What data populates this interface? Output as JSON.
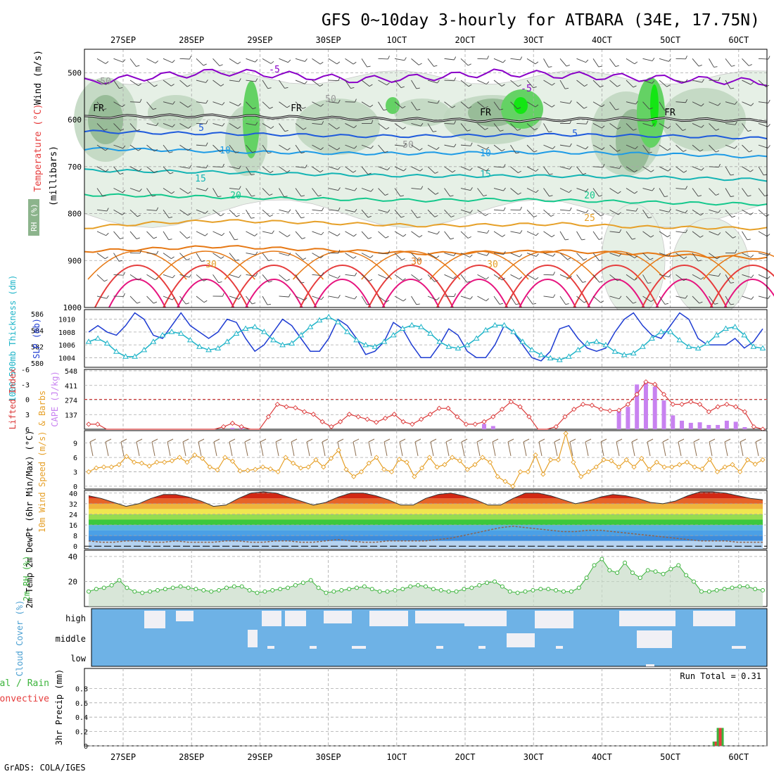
{
  "header": {
    "title": "GFS 0~10day 3-hourly for ATBARA (34E, 17.75N)",
    "credit": "GrADS: COLA/IGES"
  },
  "colors": {
    "bg": "#ffffff",
    "grid": "#a8a8a8",
    "axis": "#000000",
    "purple": "#8a00c8",
    "freeze": "#000000",
    "blue_dark": "#1e5adc",
    "blue_mid": "#1e9be6",
    "teal": "#14b4b4",
    "green_t": "#14c88c",
    "orange": "#e6a028",
    "orange_dark": "#e67814",
    "red": "#e63c3c",
    "magenta": "#e6147f",
    "rh_light": "#e6f0e6",
    "rh_mid": "#bed6be",
    "rh_dark": "#8cb48c",
    "rh_green": "#64d264",
    "rh_bright": "#14e614",
    "slp": "#1e3cd2",
    "thick": "#1eb4c8",
    "li": "#dc3c3c",
    "cape": "#c882f0",
    "wind10": "#e6a028",
    "barb10": "#8c6e50",
    "rh2m": "#3cb43c",
    "rh2m_fill": "#c8dcc8",
    "cloud_bg": "#6eb2e6",
    "cloud_gap": "#f0f0f5",
    "precip_total": "#3cb43c",
    "precip_conv": "#e63c3c"
  },
  "chart_data": [
    {
      "id": "upper-air",
      "type": "contour",
      "title": "GFS 0~10day 3-hourly for ATBARA (34E, 17.75N)",
      "xlabel_ticks_top": [
        "27SEP",
        "28SEP",
        "29SEP",
        "30SEP",
        "1OCT",
        "2OCT",
        "3OCT",
        "4OCT",
        "5OCT",
        "6OCT"
      ],
      "ylabel": "(millibars)",
      "yticks": [
        500,
        600,
        700,
        800,
        900,
        1000
      ],
      "ylim": [
        450,
        1000
      ],
      "side_labels": {
        "wind": "Wind (m/s)",
        "temp": "Temperature (°C)",
        "rh": "RH (%)"
      },
      "contour_labels": [
        "-5",
        "-5",
        "FR",
        "FR",
        "FR",
        "FR",
        "5",
        "5",
        "10",
        "10",
        "15",
        "15",
        "20",
        "20",
        "25",
        "30",
        "30",
        "30",
        "50",
        "50",
        "50"
      ],
      "temperature_levels_c": {
        "-5": [
          520,
          508,
          498,
          505,
          515,
          510,
          500,
          505,
          510,
          515,
          520
        ],
        "0": [
          595,
          592,
          592,
          595,
          598,
          600,
          602,
          600,
          598,
          600,
          602
        ],
        "5": [
          625,
          628,
          630,
          632,
          635,
          635,
          633,
          632,
          634,
          636,
          640
        ],
        "10": [
          662,
          664,
          668,
          670,
          672,
          672,
          670,
          670,
          672,
          675,
          680
        ],
        "15": [
          708,
          710,
          712,
          715,
          718,
          720,
          720,
          720,
          722,
          725,
          728
        ],
        "20": [
          760,
          762,
          765,
          768,
          770,
          772,
          770,
          772,
          775,
          778,
          780
        ],
        "25": [
          830,
          820,
          815,
          818,
          822,
          826,
          824,
          822,
          828,
          830,
          832
        ],
        "30": [
          880,
          875,
          870,
          875,
          880,
          885,
          882,
          880,
          885,
          890,
          895
        ]
      },
      "rh_percent_max": 90
    },
    {
      "id": "slp-thickness",
      "type": "line",
      "ylabel_left": "1000-500mb Thickness (dm)",
      "ylabel_right": "SLP (mb)",
      "yticks_left": [
        580,
        582,
        584,
        586
      ],
      "yticks_right": [
        1004,
        1006,
        1008,
        1010
      ],
      "ylim_left": [
        579.5,
        586.5
      ],
      "ylim_right": [
        1002.5,
        1011.5
      ],
      "series": [
        {
          "name": "SLP (mb)",
          "axis": "right",
          "values": [
            1008.0,
            1009.0,
            1008.0,
            1007.5,
            1009.0,
            1011.0,
            1010.0,
            1007.5,
            1007.0,
            1009.0,
            1011.0,
            1009.0,
            1008.0,
            1007.0,
            1008.0,
            1010.0,
            1009.5,
            1007.0,
            1005.0,
            1006.0,
            1008.0,
            1010.0,
            1009.0,
            1007.0,
            1005.0,
            1005.0,
            1007.0,
            1010.0,
            1009.0,
            1007.0,
            1004.5,
            1005.0,
            1006.5,
            1009.5,
            1008.5,
            1006.0,
            1004.0,
            1004.0,
            1006.0,
            1008.5,
            1007.5,
            1005.0,
            1004.0,
            1004.0,
            1006.0,
            1009.0,
            1008.0,
            1006.0,
            1004.0,
            1003.5,
            1005.0,
            1008.5,
            1009.0,
            1007.0,
            1005.5,
            1005.0,
            1005.5,
            1008.0,
            1010.0,
            1011.0,
            1009.0,
            1007.5,
            1007.0,
            1009.0,
            1011.0,
            1010.0,
            1007.0,
            1006.0,
            1006.0,
            1006.0,
            1007.0,
            1005.5,
            1006.5,
            1008.5
          ]
        },
        {
          "name": "1000-500mb Thickness (dm)",
          "axis": "left",
          "values": [
            582.6,
            583.0,
            582.4,
            581.4,
            580.8,
            580.8,
            581.6,
            582.6,
            583.4,
            583.8,
            583.6,
            582.8,
            582.0,
            581.6,
            581.8,
            582.6,
            583.6,
            584.2,
            584.4,
            583.8,
            582.8,
            582.2,
            582.4,
            583.4,
            584.4,
            585.2,
            585.6,
            585.0,
            583.8,
            582.8,
            582.2,
            582.0,
            582.6,
            583.4,
            584.2,
            584.6,
            584.4,
            583.6,
            582.6,
            582.0,
            581.8,
            582.2,
            583.0,
            584.0,
            584.6,
            584.6,
            583.8,
            582.6,
            581.6,
            581.0,
            580.6,
            580.4,
            580.8,
            581.6,
            582.4,
            582.6,
            582.2,
            581.4,
            581.0,
            581.2,
            582.0,
            583.0,
            583.8,
            583.8,
            582.8,
            582.0,
            581.8,
            582.4,
            583.4,
            584.2,
            584.4,
            583.4,
            582.0,
            581.8
          ]
        }
      ]
    },
    {
      "id": "cape-li",
      "type": "bar+line",
      "ylabel_left": "Lifted Index",
      "ylabel_right": "CAPE (J/kg)",
      "yticks_left": [
        "-6",
        "-3",
        "0",
        "3",
        "6"
      ],
      "yticks_right": [
        137,
        274,
        411,
        548
      ],
      "lifted_index": [
        5.0,
        5.0,
        7.0,
        7.0,
        7.0,
        7.0,
        7.0,
        7.0,
        7.0,
        7.0,
        7.0,
        7.0,
        7.0,
        7.0,
        7.0,
        5.5,
        4.8,
        5.5,
        7.0,
        7.0,
        3.5,
        1.0,
        1.5,
        1.7,
        2.5,
        3.0,
        4.5,
        5.5,
        4.5,
        3.0,
        3.5,
        4.0,
        4.6,
        3.8,
        3.0,
        4.5,
        5.0,
        4.0,
        3.0,
        1.8,
        1.8,
        3.5,
        5.0,
        5.0,
        4.5,
        3.5,
        2.0,
        0.5,
        1.5,
        3.5,
        6.5,
        7.0,
        5.5,
        3.5,
        2.0,
        1.0,
        1.2,
        2.0,
        2.3,
        2.2,
        1.0,
        -1.0,
        -3.5,
        -3.0,
        -1.0,
        1.0,
        1.0,
        0.5,
        1.0,
        2.5,
        1.5,
        1.0,
        1.5,
        2.5,
        5.5,
        6.0
      ],
      "cape_x_index": [
        16,
        17,
        44,
        45,
        59,
        60,
        61,
        62,
        63,
        64,
        65,
        66,
        67,
        68,
        69,
        70,
        71,
        72,
        73
      ],
      "cape_values": [
        12,
        12,
        50,
        30,
        170,
        210,
        420,
        450,
        400,
        270,
        130,
        80,
        60,
        65,
        40,
        40,
        80,
        70,
        20
      ]
    },
    {
      "id": "wind10m",
      "type": "line",
      "ylabel": "10m Wind Speed (m/s) & Barbs",
      "yticks": [
        0,
        3,
        6,
        9
      ],
      "ylim": [
        0,
        11
      ],
      "values": [
        3.0,
        3.8,
        4.0,
        4.0,
        4.5,
        6.2,
        5.0,
        4.8,
        4.2,
        5.0,
        5.0,
        5.3,
        6.0,
        5.0,
        6.5,
        5.8,
        4.0,
        3.4,
        6.0,
        5.2,
        3.2,
        3.3,
        3.5,
        4.0,
        3.6,
        3.0,
        6.0,
        4.8,
        3.8,
        4.0,
        5.5,
        4.0,
        5.8,
        7.5,
        3.5,
        2.0,
        3.0,
        4.8,
        6.0,
        3.5,
        3.0,
        5.6,
        5.0,
        2.0,
        3.8,
        6.0,
        4.0,
        4.5,
        6.0,
        5.3,
        3.5,
        4.5,
        6.0,
        5.0,
        2.0,
        1.0,
        0.0,
        3.0,
        3.0,
        6.5,
        2.5,
        5.5,
        5.5,
        11.0,
        5.0,
        2.0,
        3.0,
        4.0,
        5.5,
        5.3,
        4.0,
        5.5,
        4.0,
        5.8,
        3.5,
        5.0,
        4.0,
        4.0,
        4.5,
        5.0,
        4.0,
        3.6,
        5.6,
        3.0,
        4.0,
        4.5,
        3.0,
        5.5,
        4.6,
        5.5
      ]
    },
    {
      "id": "temp2m",
      "type": "area",
      "ylabel": "2m Temp 2m DewPt (6hr Min/Max) (°C)",
      "yticks": [
        0,
        8,
        16,
        24,
        32,
        40
      ],
      "ylim": [
        -2,
        42
      ],
      "temp_max": [
        38,
        36,
        33,
        30,
        32,
        36,
        39,
        39,
        37,
        34,
        30,
        31,
        36,
        40,
        41,
        40,
        37,
        34,
        31,
        33,
        37,
        40,
        40,
        38,
        35,
        31,
        31,
        36,
        39,
        40,
        38,
        35,
        31,
        31,
        36,
        40,
        40,
        38,
        35,
        32,
        34,
        37,
        39,
        38,
        36,
        33,
        32,
        34,
        38,
        41,
        41,
        40,
        38,
        36,
        35
      ],
      "dew_point": [
        4,
        3,
        3,
        4,
        4,
        3,
        3,
        4,
        3,
        3,
        3,
        4,
        4,
        3,
        3,
        4,
        4,
        3,
        3,
        4,
        5,
        4,
        3,
        3,
        4,
        4,
        4,
        4,
        5,
        6,
        8,
        10,
        12,
        14,
        15,
        14,
        13,
        12,
        11,
        11,
        12,
        12,
        11,
        10,
        9,
        8,
        7,
        6,
        5,
        4,
        4,
        4,
        3,
        3,
        3
      ]
    },
    {
      "id": "rh2m",
      "type": "area",
      "ylabel": "2m RH (%)",
      "yticks": [
        20,
        40
      ],
      "ylim": [
        0,
        45
      ],
      "values": [
        12,
        14,
        15,
        17,
        21,
        15,
        12,
        11,
        12,
        13,
        14,
        15,
        16,
        15,
        14,
        13,
        12,
        13,
        15,
        16,
        16,
        13,
        11,
        12,
        13,
        14,
        15,
        17,
        19,
        21,
        15,
        11,
        12,
        13,
        14,
        15,
        16,
        14,
        12,
        12,
        13,
        14,
        16,
        17,
        16,
        14,
        13,
        12,
        12,
        14,
        15,
        17,
        19,
        20,
        16,
        12,
        11,
        12,
        13,
        14,
        14,
        13,
        12,
        12,
        15,
        23,
        33,
        38,
        29,
        27,
        35,
        27,
        23,
        29,
        28,
        26,
        30,
        33,
        25,
        20,
        12,
        12,
        13,
        14,
        15,
        16,
        16,
        14,
        13
      ]
    },
    {
      "id": "cloud",
      "type": "heatmap",
      "ylabel": "Cloud Cover (%)",
      "row_labels": [
        "high",
        "middle",
        "low"
      ],
      "high_pct": [
        0,
        0,
        0,
        0,
        0,
        0,
        0,
        0,
        0,
        0,
        0,
        0,
        0,
        0,
        0,
        0,
        0,
        0,
        0,
        0,
        0,
        0,
        0,
        0,
        0,
        0,
        0,
        0,
        0,
        0,
        0,
        0,
        0,
        0,
        0,
        0,
        0,
        0,
        0,
        0,
        0,
        0,
        0,
        0,
        0,
        0,
        0,
        0,
        0,
        0,
        0,
        0,
        0,
        0,
        0,
        0,
        0,
        0,
        0,
        0,
        0,
        0,
        0,
        0,
        0,
        0,
        0,
        0,
        0,
        0,
        0,
        0,
        0,
        0,
        0,
        0,
        0,
        0,
        0,
        0,
        0
      ],
      "middle_pct": [
        0,
        0,
        0,
        0,
        0,
        0,
        0,
        0,
        0,
        0,
        0,
        0,
        0,
        0,
        0,
        0,
        0,
        0,
        0,
        0,
        0,
        0,
        0,
        0,
        0,
        0,
        0,
        0,
        0,
        0,
        0,
        0,
        0,
        0,
        0,
        0,
        0,
        0,
        0,
        0,
        0,
        0,
        0,
        0,
        0,
        0,
        0,
        0,
        0,
        0,
        0,
        0,
        0,
        0,
        0,
        0,
        0,
        0,
        0,
        0,
        0,
        0,
        0,
        0,
        0,
        0,
        0,
        0,
        0,
        0,
        0,
        0,
        0,
        0,
        0,
        0,
        0,
        0,
        0,
        0,
        0
      ],
      "low_pct": [
        0,
        0,
        0,
        0,
        0,
        0,
        0,
        0,
        0,
        0,
        0,
        0,
        0,
        0,
        0,
        0,
        0,
        0,
        0,
        0,
        0,
        0,
        0,
        0,
        0,
        0,
        0,
        0,
        0,
        0,
        0,
        0,
        0,
        0,
        0,
        0,
        0,
        0,
        0,
        0,
        0,
        0,
        0,
        0,
        0,
        0,
        0,
        0,
        0,
        0,
        0,
        0,
        0,
        0,
        0,
        0,
        0,
        0,
        0,
        0,
        0,
        0,
        0,
        0,
        0,
        0,
        0,
        0,
        0,
        0,
        0,
        0,
        0,
        0,
        0,
        0,
        0,
        0,
        0,
        0,
        0
      ]
    },
    {
      "id": "precip",
      "type": "bar",
      "ylabel": "3hr Precip (mm)",
      "ylabel_left_parts": [
        "Total / Rain",
        "Convective"
      ],
      "yticks": [
        0,
        0.2,
        0.4,
        0.6,
        0.8
      ],
      "ylim": [
        0,
        1.0
      ],
      "run_total": "Run Total = 0.31",
      "bars": [
        {
          "x_day": 8.67,
          "total": 0.06,
          "conv": 0.06
        },
        {
          "x_day": 8.73,
          "total": 0.25,
          "conv": 0.25
        }
      ]
    }
  ],
  "xaxis_bottom": [
    "27SEP",
    "28SEP",
    "29SEP",
    "30SEP",
    "1OCT",
    "2OCT",
    "3OCT",
    "4OCT",
    "5OCT",
    "6OCT"
  ]
}
